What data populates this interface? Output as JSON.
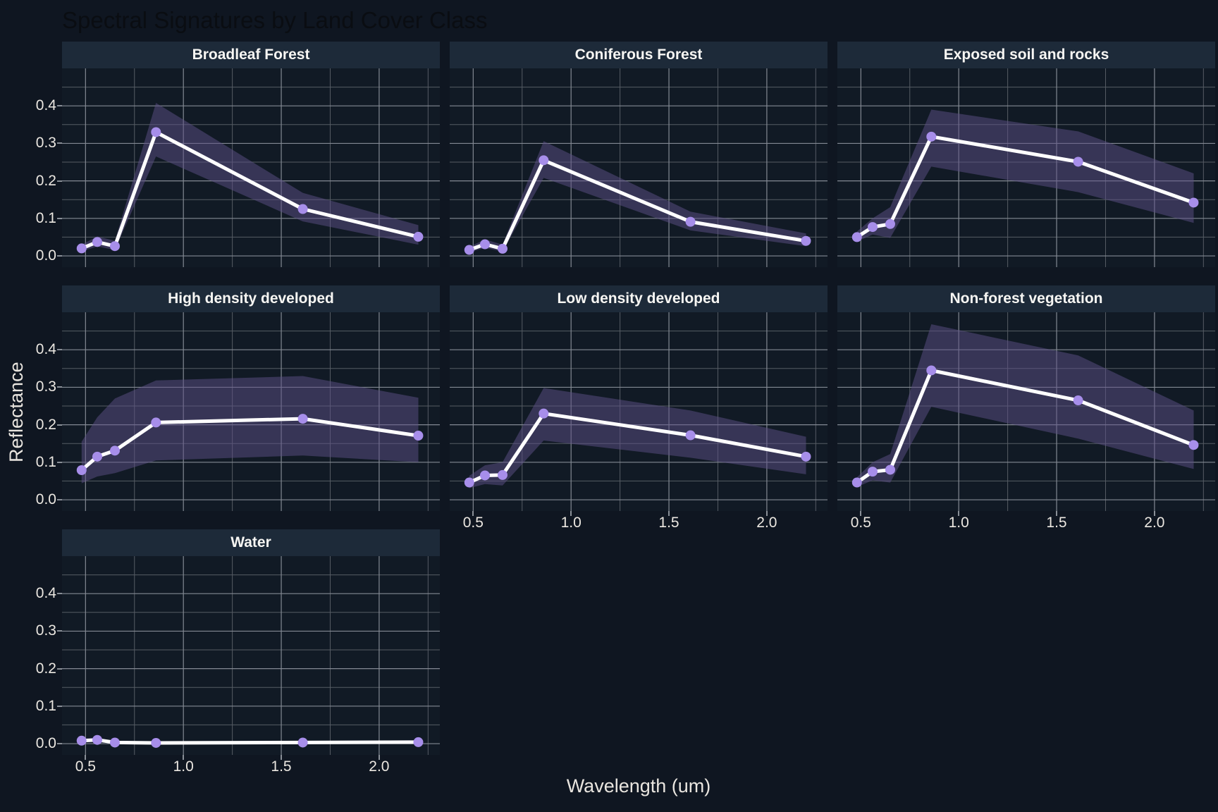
{
  "title": "Spectral Signatures by Land Cover Class",
  "colors": {
    "background": "#0f1621",
    "panel_background": "#111a25",
    "strip_background": "#1d2a39",
    "strip_text": "#f7f6f3",
    "title_text": "#0a0d12",
    "axis_title_text": "#e9e5df",
    "tick_label_text": "#ebe7e1",
    "grid_major": "#838993",
    "grid_minor": "#565c64",
    "line": "#ffffff",
    "point": "#a78eea",
    "ribbon": "#5d5088",
    "ribbon_opacity": 0.5,
    "tick_mark": "#8a9098"
  },
  "chart_data": {
    "type": "line",
    "title": "Spectral Signatures by Land Cover Class",
    "xlabel": "Wavelength (um)",
    "ylabel": "Reflectance",
    "facet_layout": "3 columns, 7 panels, shared axes",
    "x": [
      0.48,
      0.56,
      0.65,
      0.86,
      1.61,
      2.2
    ],
    "xlim": [
      0.38,
      2.31
    ],
    "ylim": [
      -0.03,
      0.5
    ],
    "x_ticks": [
      0.5,
      1.0,
      1.5,
      2.0
    ],
    "x_tick_labels": [
      "0.5",
      "1.0",
      "1.5",
      "2.0"
    ],
    "x_minor": [
      0.75,
      1.25,
      1.75,
      2.25
    ],
    "y_ticks": [
      0.0,
      0.1,
      0.2,
      0.3,
      0.4
    ],
    "y_tick_labels": [
      "0.0",
      "0.1",
      "0.2",
      "0.3",
      "0.4"
    ],
    "y_minor": [
      0.05,
      0.15,
      0.25,
      0.35,
      0.45
    ],
    "grid": true,
    "legend": "none",
    "facets": [
      {
        "label": "Broadleaf Forest",
        "mean": [
          0.02,
          0.037,
          0.026,
          0.33,
          0.125,
          0.051
        ],
        "lower": [
          0.012,
          0.025,
          0.016,
          0.265,
          0.092,
          0.03
        ],
        "upper": [
          0.03,
          0.052,
          0.04,
          0.408,
          0.168,
          0.082
        ]
      },
      {
        "label": "Coniferous Forest",
        "mean": [
          0.016,
          0.031,
          0.019,
          0.255,
          0.091,
          0.04
        ],
        "lower": [
          0.01,
          0.021,
          0.012,
          0.208,
          0.068,
          0.026
        ],
        "upper": [
          0.024,
          0.044,
          0.03,
          0.306,
          0.118,
          0.06
        ]
      },
      {
        "label": "Exposed soil and rocks",
        "mean": [
          0.05,
          0.077,
          0.085,
          0.318,
          0.251,
          0.142
        ],
        "lower": [
          0.038,
          0.057,
          0.048,
          0.238,
          0.17,
          0.088
        ],
        "upper": [
          0.065,
          0.1,
          0.13,
          0.39,
          0.332,
          0.22
        ]
      },
      {
        "label": "High density developed",
        "mean": [
          0.079,
          0.115,
          0.131,
          0.206,
          0.216,
          0.171
        ],
        "lower": [
          0.044,
          0.062,
          0.071,
          0.105,
          0.118,
          0.1
        ],
        "upper": [
          0.155,
          0.22,
          0.27,
          0.318,
          0.33,
          0.272
        ]
      },
      {
        "label": "Low density developed",
        "mean": [
          0.046,
          0.065,
          0.066,
          0.23,
          0.172,
          0.115
        ],
        "lower": [
          0.031,
          0.042,
          0.038,
          0.158,
          0.112,
          0.068
        ],
        "upper": [
          0.064,
          0.092,
          0.1,
          0.298,
          0.238,
          0.168
        ]
      },
      {
        "label": "Non-forest vegetation",
        "mean": [
          0.046,
          0.075,
          0.08,
          0.345,
          0.265,
          0.146
        ],
        "lower": [
          0.034,
          0.052,
          0.046,
          0.248,
          0.163,
          0.082
        ],
        "upper": [
          0.06,
          0.1,
          0.122,
          0.468,
          0.385,
          0.238
        ]
      },
      {
        "label": "Water",
        "mean": [
          0.008,
          0.01,
          0.003,
          0.002,
          0.003,
          0.004
        ],
        "lower": [
          0.004,
          0.005,
          0.0,
          0.0,
          0.0,
          0.001
        ],
        "upper": [
          0.013,
          0.016,
          0.007,
          0.005,
          0.007,
          0.009
        ]
      }
    ]
  }
}
